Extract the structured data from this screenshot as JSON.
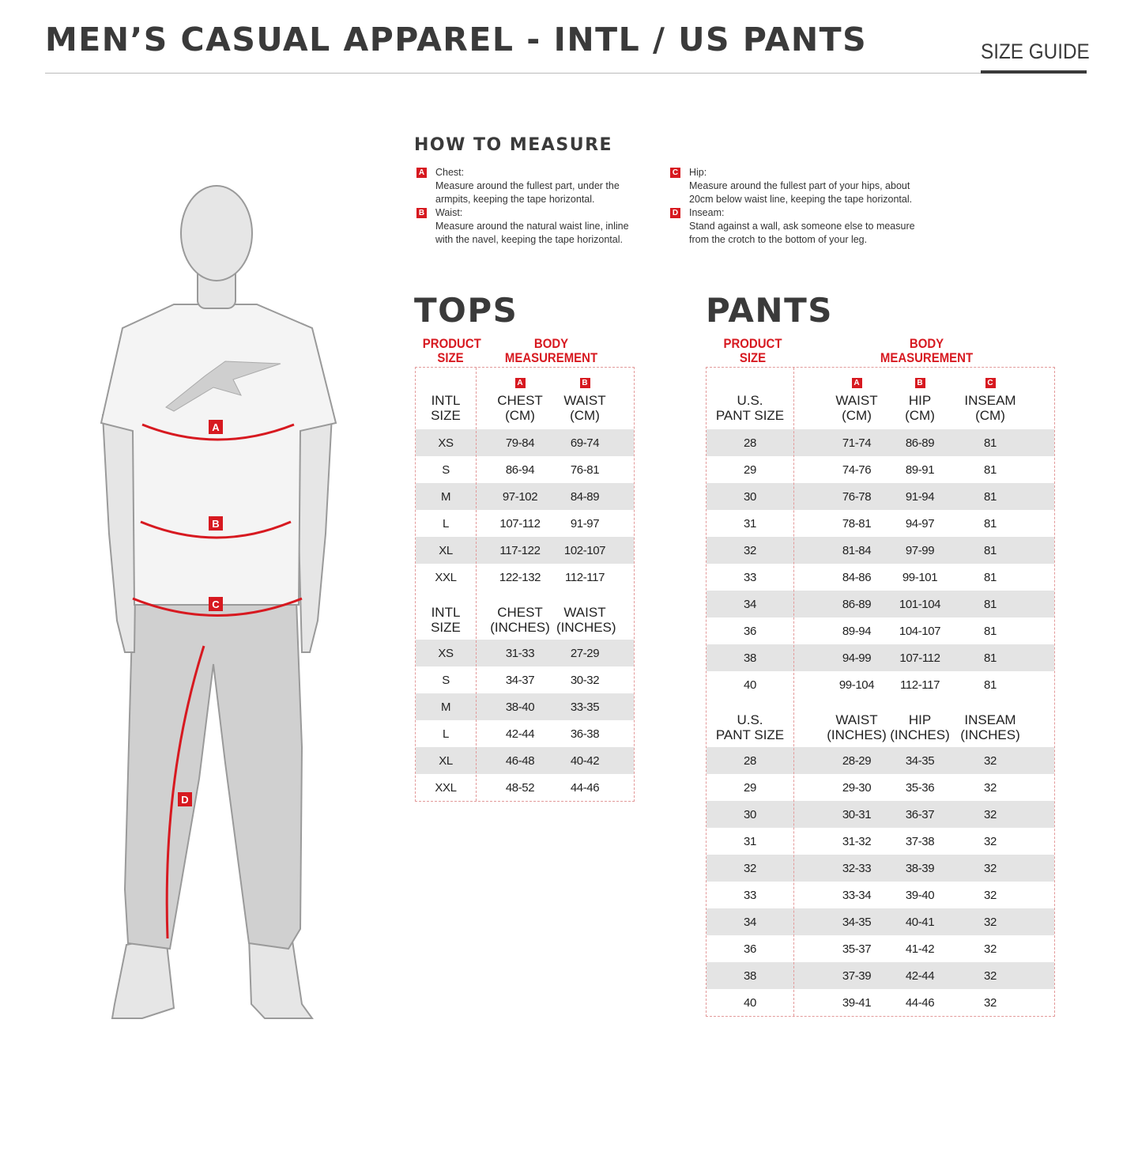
{
  "header": {
    "title": "MEN’S CASUAL APPAREL - INTL / US PANTS",
    "tag": "SIZE GUIDE"
  },
  "how_to_measure": {
    "title": "HOW TO MEASURE",
    "items": [
      {
        "letter": "A",
        "name": "Chest:",
        "desc": "Measure around the fullest part, under the armpits, keeping the tape horizontal."
      },
      {
        "letter": "B",
        "name": "Waist:",
        "desc": "Measure around the natural waist line, inline with the navel, keeping the tape horizontal."
      },
      {
        "letter": "C",
        "name": "Hip:",
        "desc": "Measure around the fullest part of your hips, about 20cm below waist line, keeping the tape horizontal."
      },
      {
        "letter": "D",
        "name": "Inseam:",
        "desc": "Stand against a wall, ask someone else to measure from the crotch to the bottom of your leg."
      }
    ]
  },
  "figure": {
    "labels": [
      "A",
      "B",
      "C",
      "D"
    ]
  },
  "tops": {
    "title": "TOPS",
    "product_size": "PRODUCT SIZE",
    "body_measurement": "BODY MEASUREMENT",
    "letters": [
      "A",
      "B"
    ],
    "cm": {
      "headers": [
        "INTL SIZE",
        "CHEST (CM)",
        "WAIST (CM)"
      ],
      "rows": [
        [
          "XS",
          "79-84",
          "69-74"
        ],
        [
          "S",
          "86-94",
          "76-81"
        ],
        [
          "M",
          "97-102",
          "84-89"
        ],
        [
          "L",
          "107-112",
          "91-97"
        ],
        [
          "XL",
          "117-122",
          "102-107"
        ],
        [
          "XXL",
          "122-132",
          "112-117"
        ]
      ]
    },
    "inches": {
      "headers": [
        "INTL SIZE",
        "CHEST (INCHES)",
        "WAIST (INCHES)"
      ],
      "rows": [
        [
          "XS",
          "31-33",
          "27-29"
        ],
        [
          "S",
          "34-37",
          "30-32"
        ],
        [
          "M",
          "38-40",
          "33-35"
        ],
        [
          "L",
          "42-44",
          "36-38"
        ],
        [
          "XL",
          "46-48",
          "40-42"
        ],
        [
          "XXL",
          "48-52",
          "44-46"
        ]
      ]
    }
  },
  "pants": {
    "title": "PANTS",
    "product_size": "PRODUCT SIZE",
    "body_measurement": "BODY MEASUREMENT",
    "letters": [
      "A",
      "B",
      "C"
    ],
    "cm": {
      "headers": [
        "U.S. PANT SIZE",
        "WAIST (CM)",
        "HIP (CM)",
        "INSEAM (CM)"
      ],
      "rows": [
        [
          "28",
          "71-74",
          "86-89",
          "81"
        ],
        [
          "29",
          "74-76",
          "89-91",
          "81"
        ],
        [
          "30",
          "76-78",
          "91-94",
          "81"
        ],
        [
          "31",
          "78-81",
          "94-97",
          "81"
        ],
        [
          "32",
          "81-84",
          "97-99",
          "81"
        ],
        [
          "33",
          "84-86",
          "99-101",
          "81"
        ],
        [
          "34",
          "86-89",
          "101-104",
          "81"
        ],
        [
          "36",
          "89-94",
          "104-107",
          "81"
        ],
        [
          "38",
          "94-99",
          "107-112",
          "81"
        ],
        [
          "40",
          "99-104",
          "112-117",
          "81"
        ]
      ]
    },
    "inches": {
      "headers": [
        "U.S. PANT SIZE",
        "WAIST (INCHES)",
        "HIP (INCHES)",
        "INSEAM (INCHES)"
      ],
      "rows": [
        [
          "28",
          "28-29",
          "34-35",
          "32"
        ],
        [
          "29",
          "29-30",
          "35-36",
          "32"
        ],
        [
          "30",
          "30-31",
          "36-37",
          "32"
        ],
        [
          "31",
          "31-32",
          "37-38",
          "32"
        ],
        [
          "32",
          "32-33",
          "38-39",
          "32"
        ],
        [
          "33",
          "33-34",
          "39-40",
          "32"
        ],
        [
          "34",
          "34-35",
          "40-41",
          "32"
        ],
        [
          "36",
          "35-37",
          "41-42",
          "32"
        ],
        [
          "38",
          "37-39",
          "42-44",
          "32"
        ],
        [
          "40",
          "39-41",
          "44-46",
          "32"
        ]
      ]
    }
  },
  "colors": {
    "accent": "#d71920",
    "stripe": "#e4e4e4",
    "heading": "#3a3a3a"
  }
}
